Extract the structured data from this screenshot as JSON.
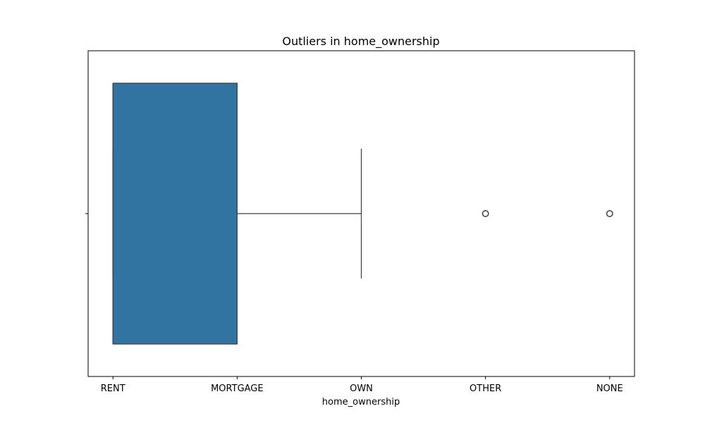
{
  "chart_data": {
    "type": "box",
    "orientation": "horizontal",
    "title": "Outliers in home_ownership",
    "xlabel": "home_ownership",
    "ylabel": "",
    "categories": [
      "RENT",
      "MORTGAGE",
      "OWN",
      "OTHER",
      "NONE"
    ],
    "xlim": [
      -0.2,
      4.2
    ],
    "box": {
      "whisker_low": 0,
      "q1": 0,
      "median": 0,
      "q3": 1,
      "whisker_high": 2,
      "outliers": [
        3,
        4
      ]
    },
    "grid": false,
    "legend": "none"
  },
  "colors": {
    "box_fill": "#3274a1",
    "line": "#3d3d3d",
    "frame": "#000000"
  }
}
